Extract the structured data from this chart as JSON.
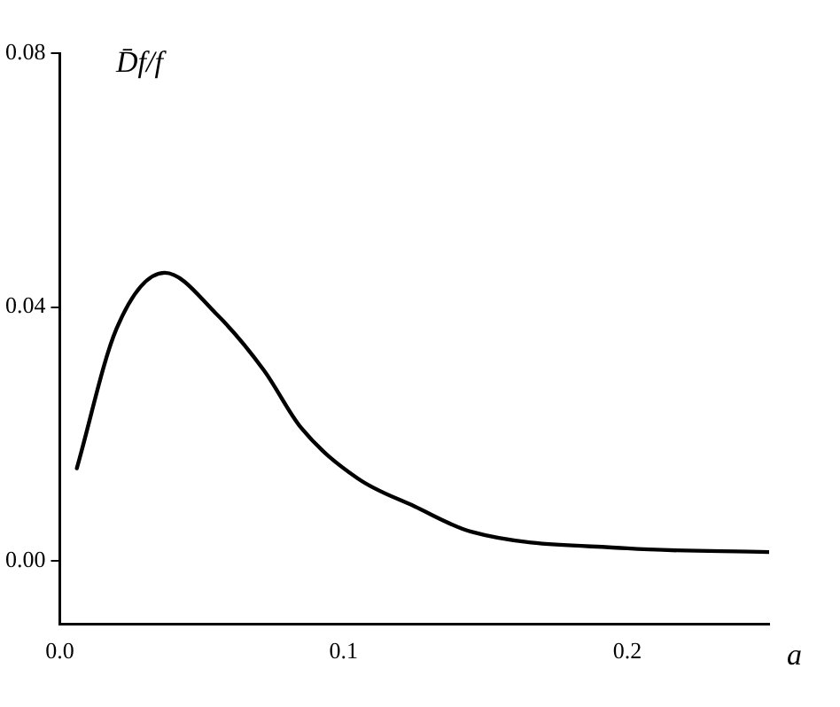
{
  "chart_data": {
    "type": "line",
    "xlabel": "a",
    "ylabel": "D̄f/f",
    "x": [
      0.006,
      0.02,
      0.037,
      0.055,
      0.072,
      0.085,
      0.105,
      0.125,
      0.145,
      0.2,
      0.25
    ],
    "series": [
      {
        "color": "#000000",
        "values": [
          0.0146,
          0.0366,
          0.0454,
          0.039,
          0.03,
          0.021,
          0.013,
          0.0086,
          0.0046,
          0.002,
          0.0014
        ]
      }
    ],
    "xlim": [
      0,
      0.25
    ],
    "xticks": [
      {
        "value": 0,
        "label": "0.0"
      },
      {
        "value": 0.1,
        "label": "0.1"
      },
      {
        "value": 0.2,
        "label": "0.2"
      }
    ],
    "ylim": [
      -0.01,
      0.08
    ],
    "yticks": [
      {
        "value": 0,
        "label": "0.00"
      },
      {
        "value": 0.04,
        "label": "0.04"
      },
      {
        "value": 0.08,
        "label": "0.08"
      }
    ],
    "grid": false,
    "legend": false,
    "marker": "none",
    "line_style": "solid"
  }
}
